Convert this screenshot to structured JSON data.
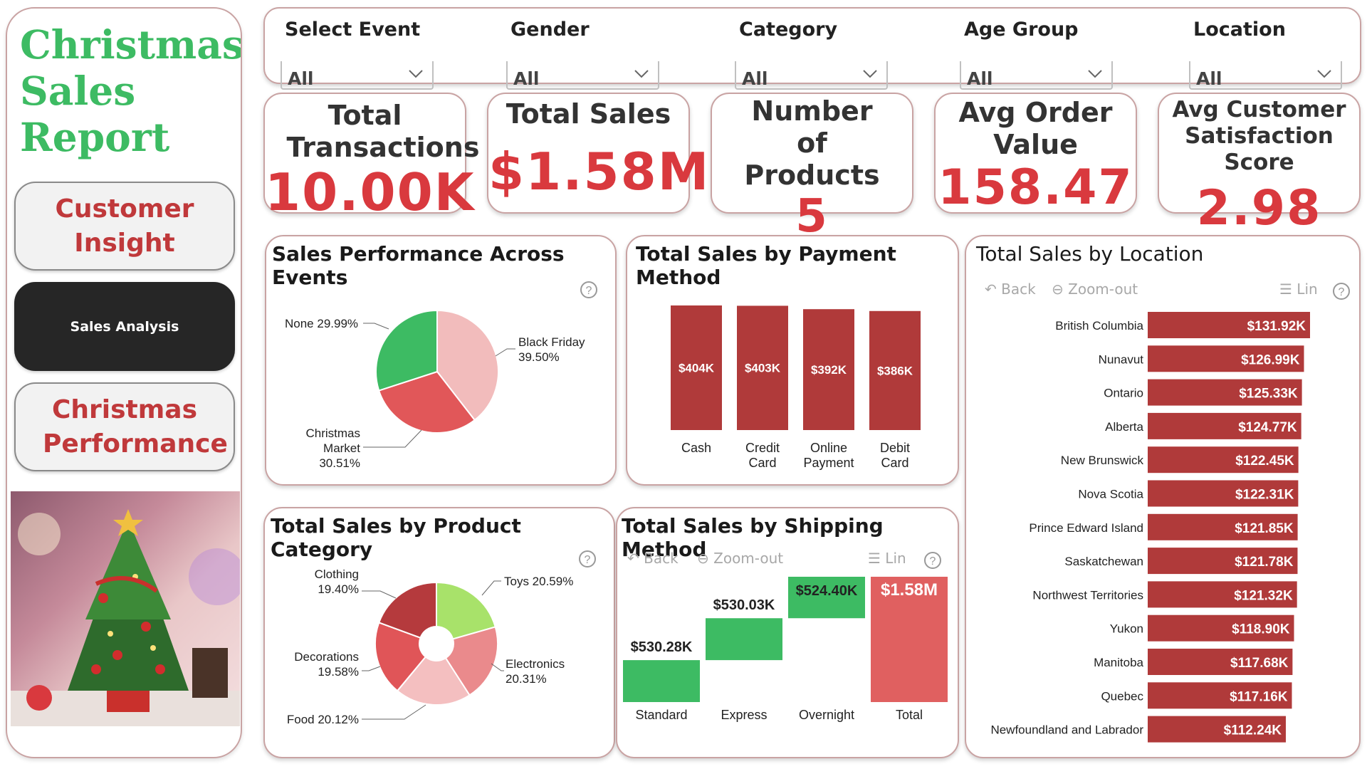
{
  "sidebar": {
    "title_lines": [
      "Christmas",
      "Sales",
      "Report"
    ],
    "buttons": [
      {
        "label": "Customer Insight"
      },
      {
        "label": "Sales Analysis"
      },
      {
        "label": "Christmas Performance"
      }
    ]
  },
  "filters": [
    {
      "label": "Select Event",
      "value": "All"
    },
    {
      "label": "Gender",
      "value": "All"
    },
    {
      "label": "Category",
      "value": "All"
    },
    {
      "label": "Age Group",
      "value": "All"
    },
    {
      "label": "Location",
      "value": "All"
    }
  ],
  "kpis": [
    {
      "label": "Total Transactions",
      "value": "10.00K"
    },
    {
      "label": "Total Sales",
      "value": "$1.58M"
    },
    {
      "label": "Number of Products",
      "value": "5"
    },
    {
      "label": "Avg Order Value",
      "value": "158.47"
    },
    {
      "label": "Avg Customer Satisfaction Score",
      "value": "2.98"
    }
  ],
  "visual_tools": {
    "back": "Back",
    "zoom_out": "Zoom-out",
    "lin": "Lin"
  },
  "colors": {
    "title_green": "#3dbb63",
    "accent_red": "#d9393e",
    "bar_red": "#b03a3a",
    "green": "#3dbb63",
    "light_pink": "#f2bcbc",
    "mid_red": "#e06060"
  },
  "chart_data": [
    {
      "type": "pie",
      "title": "Sales Performance Across Events",
      "slices": [
        {
          "label": "Black Friday",
          "value": 39.5,
          "display": "39.50%",
          "color": "#f2bcbc"
        },
        {
          "label": "Christmas Market",
          "value": 30.51,
          "display": "30.51%",
          "color": "#e15759"
        },
        {
          "label": "None",
          "value": 29.99,
          "display": "29.99%",
          "color": "#3dbb63"
        }
      ]
    },
    {
      "type": "bar",
      "title": "Total Sales by Payment Method",
      "categories": [
        "Cash",
        "Credit Card",
        "Online Payment",
        "Debit Card"
      ],
      "values": [
        404,
        403,
        392,
        386
      ],
      "data_labels": [
        "$404K",
        "$403K",
        "$392K",
        "$386K"
      ],
      "unit": "K"
    },
    {
      "type": "pie",
      "title": "Total Sales by Product Category",
      "donut": true,
      "slices": [
        {
          "label": "Toys",
          "value": 20.59,
          "display": "20.59%",
          "color": "#a8e26a"
        },
        {
          "label": "Electronics",
          "value": 20.31,
          "display": "20.31%",
          "color": "#ea8a8c"
        },
        {
          "label": "Food",
          "value": 20.12,
          "display": "20.12%",
          "color": "#f4bfc0"
        },
        {
          "label": "Decorations",
          "value": 19.58,
          "display": "19.58%",
          "color": "#e05558"
        },
        {
          "label": "Clothing",
          "value": 19.4,
          "display": "19.40%",
          "color": "#b53a3d"
        }
      ]
    },
    {
      "type": "bar",
      "subtype": "waterfall",
      "title": "Total Sales by Shipping Method",
      "categories": [
        "Standard",
        "Express",
        "Overnight",
        "Total"
      ],
      "values": [
        530.28,
        530.03,
        524.4,
        1584.71
      ],
      "data_labels": [
        "$530.28K",
        "$530.03K",
        "$524.40K",
        "$1.58M"
      ],
      "unit": "K"
    },
    {
      "type": "bar",
      "orientation": "horizontal",
      "title": "Total Sales by Location",
      "categories": [
        "British Columbia",
        "Nunavut",
        "Ontario",
        "Alberta",
        "New Brunswick",
        "Nova Scotia",
        "Prince Edward Island",
        "Saskatchewan",
        "Northwest Territories",
        "Yukon",
        "Manitoba",
        "Quebec",
        "Newfoundland and Labrador"
      ],
      "values": [
        131.92,
        126.99,
        125.33,
        124.77,
        122.45,
        122.31,
        121.85,
        121.78,
        121.32,
        118.9,
        117.68,
        117.16,
        112.24
      ],
      "data_labels": [
        "$131.92K",
        "$126.99K",
        "$125.33K",
        "$124.77K",
        "$122.45K",
        "$122.31K",
        "$121.85K",
        "$121.78K",
        "$121.32K",
        "$118.90K",
        "$117.68K",
        "$117.16K",
        "$112.24K"
      ],
      "unit": "K"
    }
  ]
}
